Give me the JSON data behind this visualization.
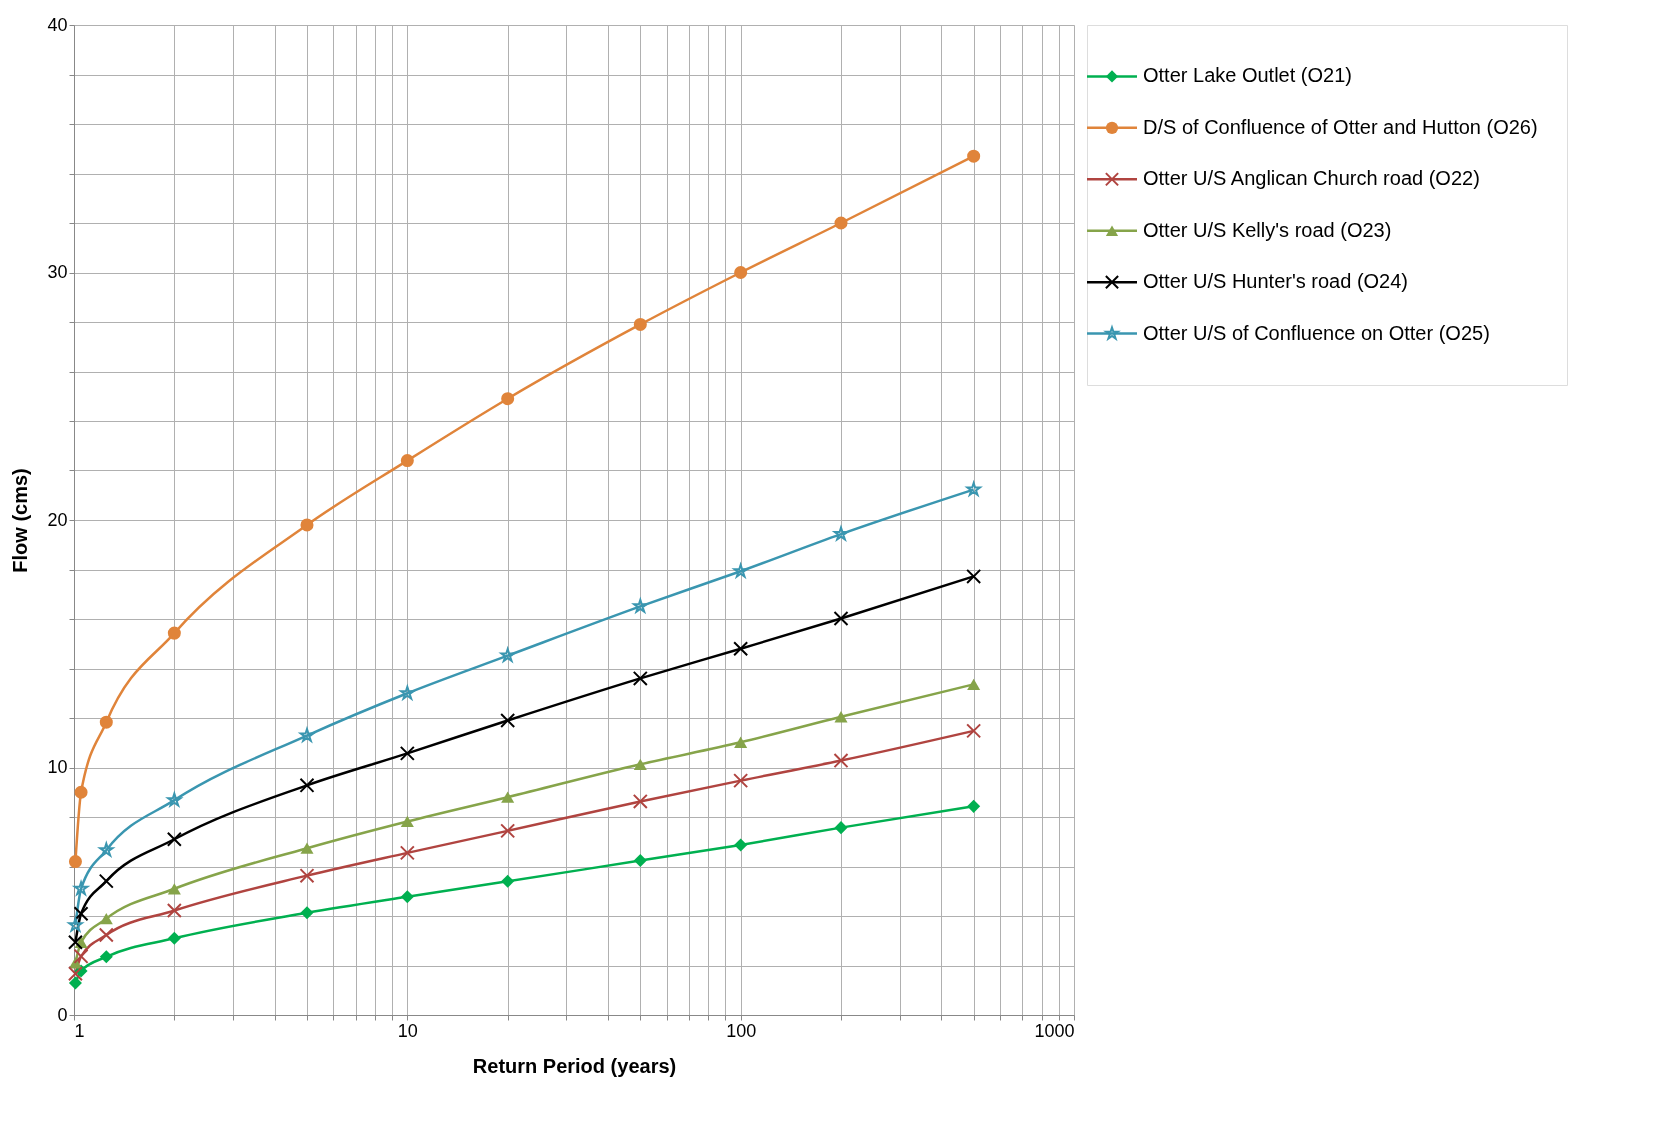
{
  "chart_data": {
    "type": "line",
    "xlabel": "Return Period (years)",
    "ylabel": "Flow (cms)",
    "log": "x",
    "grid": true,
    "legend": "right",
    "line_style": "solid",
    "x": [
      1.01,
      1.05,
      1.25,
      2,
      5,
      10,
      20,
      50,
      100,
      200,
      500
    ],
    "xlim": [
      1,
      1000
    ],
    "xticks": [
      1,
      {
        "value": 2,
        "label": null
      },
      {
        "value": 3,
        "label": null
      },
      {
        "value": 4,
        "label": null
      },
      {
        "value": 5,
        "label": null
      },
      {
        "value": 6,
        "label": null
      },
      {
        "value": 7,
        "label": null
      },
      {
        "value": 8,
        "label": null
      },
      {
        "value": 9,
        "label": null
      },
      10,
      {
        "value": 20,
        "label": null
      },
      {
        "value": 30,
        "label": null
      },
      {
        "value": 40,
        "label": null
      },
      {
        "value": 50,
        "label": null
      },
      {
        "value": 60,
        "label": null
      },
      {
        "value": 70,
        "label": null
      },
      {
        "value": 80,
        "label": null
      },
      {
        "value": 90,
        "label": null
      },
      100,
      {
        "value": 200,
        "label": null
      },
      {
        "value": 300,
        "label": null
      },
      {
        "value": 400,
        "label": null
      },
      {
        "value": 500,
        "label": null
      },
      {
        "value": 600,
        "label": null
      },
      {
        "value": 700,
        "label": null
      },
      {
        "value": 800,
        "label": null
      },
      {
        "value": 900,
        "label": null
      },
      1000
    ],
    "ylim": [
      0,
      40
    ],
    "yticks": [
      0,
      {
        "value": 2,
        "label": null
      },
      {
        "value": 4,
        "label": null
      },
      {
        "value": 6,
        "label": null
      },
      {
        "value": 8,
        "label": null
      },
      10,
      {
        "value": 12,
        "label": null
      },
      {
        "value": 14,
        "label": null
      },
      {
        "value": 16,
        "label": null
      },
      {
        "value": 18,
        "label": null
      },
      20,
      {
        "value": 22,
        "label": null
      },
      {
        "value": 24,
        "label": null
      },
      {
        "value": 26,
        "label": null
      },
      {
        "value": 28,
        "label": null
      },
      30,
      {
        "value": 32,
        "label": null
      },
      {
        "value": 34,
        "label": null
      },
      {
        "value": 36,
        "label": null
      },
      {
        "value": 38,
        "label": null
      },
      40
    ],
    "series": [
      {
        "name": "Otter Lake Outlet (O21)",
        "color": "#00b050",
        "marker": "diamond",
        "values": [
          1.29,
          1.78,
          2.35,
          3.1,
          4.13,
          4.78,
          5.4,
          6.24,
          6.87,
          7.57,
          8.43
        ]
      },
      {
        "name": "D/S of Confluence of Otter and Hutton (O26)",
        "color": "#e0843a",
        "marker": "circle",
        "values": [
          6.2,
          9.0,
          11.83,
          15.43,
          19.8,
          22.4,
          24.9,
          27.9,
          30.0,
          32.0,
          34.7
        ]
      },
      {
        "name": "Otter U/S Anglican Church road (O22)",
        "color": "#b04440",
        "marker": "cross",
        "values": [
          1.67,
          2.37,
          3.23,
          4.22,
          5.63,
          6.55,
          7.44,
          8.63,
          9.47,
          10.28,
          11.48
        ]
      },
      {
        "name": "Otter U/S Kelly's road (O23)",
        "color": "#86a44a",
        "marker": "triangle",
        "values": [
          2.11,
          2.94,
          3.89,
          5.1,
          6.74,
          7.82,
          8.8,
          10.13,
          11.02,
          12.05,
          13.36
        ]
      },
      {
        "name": "Otter U/S Hunter's road (O24)",
        "color": "#000000",
        "marker": "cross",
        "values": [
          2.94,
          4.09,
          5.41,
          7.1,
          9.28,
          10.57,
          11.9,
          13.6,
          14.8,
          16.02,
          17.72
        ]
      },
      {
        "name": "Otter U/S of Confluence on Otter (O25)",
        "color": "#3a96b0",
        "marker": "star",
        "values": [
          3.63,
          5.1,
          6.66,
          8.68,
          11.29,
          13.0,
          14.52,
          16.51,
          17.93,
          19.43,
          21.23
        ]
      }
    ]
  }
}
